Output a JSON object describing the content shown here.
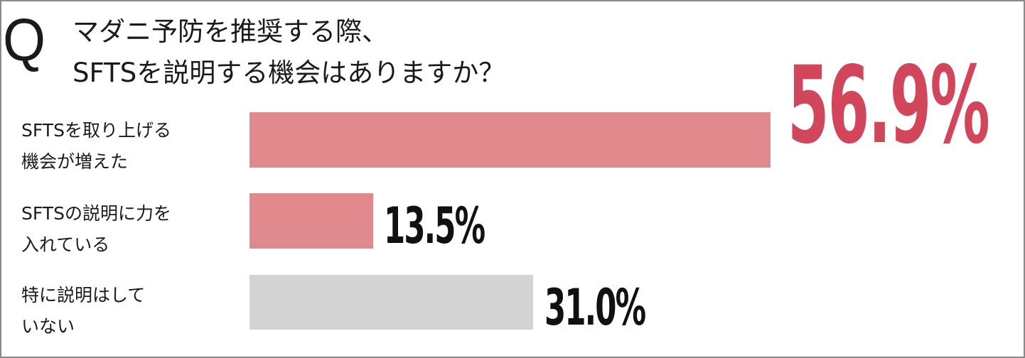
{
  "question": {
    "mark": "Q",
    "line1": "マダニ予防を推奨する際、",
    "line2": "SFTSを説明する機会はありますか？"
  },
  "chart_data": {
    "type": "bar",
    "orientation": "horizontal",
    "unit": "%",
    "max": 56.9,
    "items": [
      {
        "label_line1": "SFTSを取り上げる",
        "label_line2": "機会が増えた",
        "value": 56.9,
        "display": "56.9%",
        "color": "#e08a8e",
        "value_color": "#d2465c"
      },
      {
        "label_line1": "SFTSの説明に力を",
        "label_line2": "入れている",
        "value": 13.5,
        "display": "13.5%",
        "color": "#e08a8e",
        "value_color": "#111111"
      },
      {
        "label_line1": "特に説明はして",
        "label_line2": "いない",
        "value": 31.0,
        "display": "31.0%",
        "color": "#d3d3d3",
        "value_color": "#111111"
      }
    ]
  }
}
